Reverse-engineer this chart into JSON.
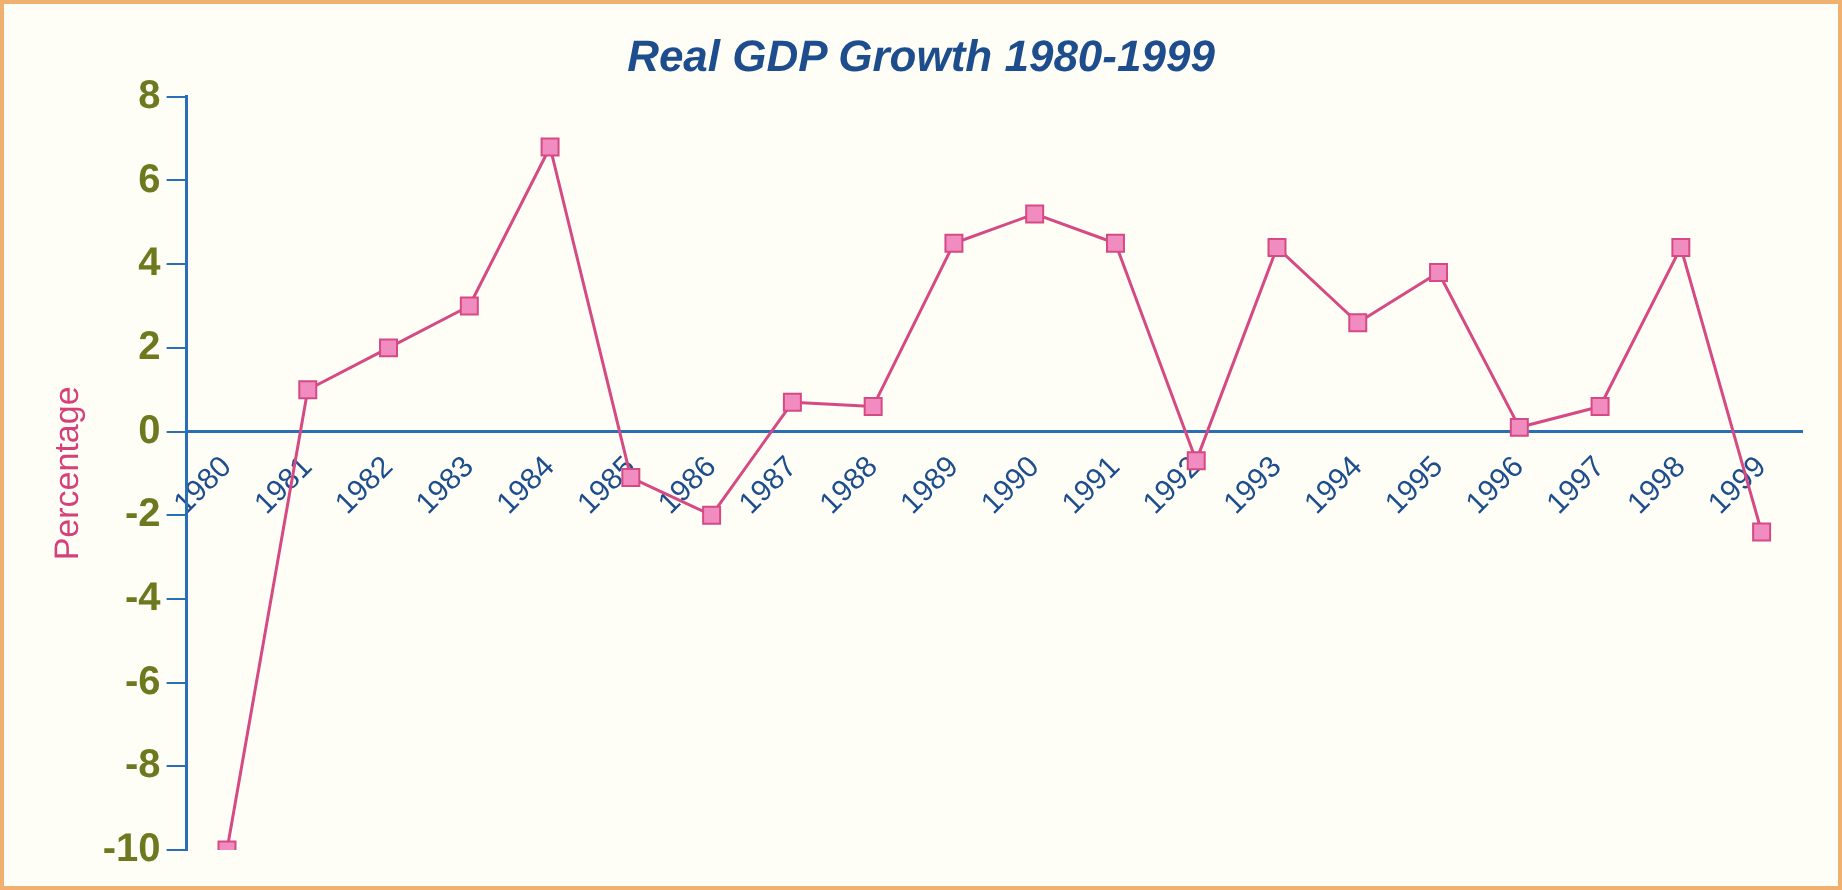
{
  "chart_data": {
    "type": "line",
    "title": "Real GDP Growth 1980-1999",
    "ylabel": "Percentage",
    "categories": [
      "1980",
      "1981",
      "1982",
      "1983",
      "1984",
      "1985",
      "1986",
      "1987",
      "1988",
      "1989",
      "1990",
      "1991",
      "1992",
      "1993",
      "1994",
      "1995",
      "1996",
      "1997",
      "1998",
      "1999"
    ],
    "series": [
      {
        "color": "#d64a84",
        "values": [
          -10,
          1.0,
          2.0,
          3.0,
          6.8,
          -1.1,
          -2.0,
          0.7,
          0.6,
          4.5,
          5.2,
          4.5,
          -0.7,
          4.4,
          2.6,
          3.8,
          0.1,
          0.6,
          4.4,
          -2.4
        ]
      }
    ],
    "ylim": [
      -10,
      8
    ],
    "yticks": [
      -10,
      -8,
      -6,
      -4,
      -2,
      0,
      2,
      4,
      6,
      8
    ],
    "grid": false,
    "legend": false,
    "marker": "square",
    "line_style": "solid"
  }
}
